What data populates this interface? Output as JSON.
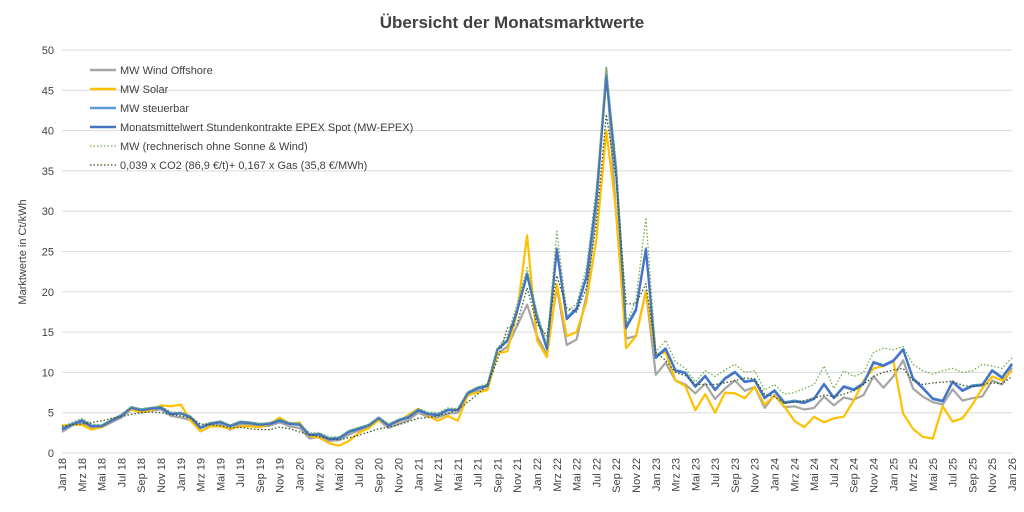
{
  "chart_data": {
    "type": "line",
    "title": "Übersicht der Monatsmarktwerte",
    "y_label": "Marktwerte in Ct/kWh",
    "categories": [
      "Jan 18",
      null,
      "Mrz 18",
      null,
      "Mai 18",
      null,
      "Jul 18",
      null,
      "Sep 18",
      null,
      "Nov 18",
      null,
      "Jan 19",
      null,
      "Mrz 19",
      null,
      "Mai 19",
      null,
      "Jul 19",
      null,
      "Sep 19",
      null,
      "Nov 19",
      null,
      "Jan 20",
      null,
      "Mrz 20",
      null,
      "Mai 20",
      null,
      "Jul 20",
      null,
      "Sep 20",
      null,
      "Nov 20",
      null,
      "Jan 21",
      null,
      "Mrz 21",
      null,
      "Mai 21",
      null,
      "Jul 21",
      null,
      "Sep 21",
      null,
      "Nov 21",
      null,
      "Jan 22",
      null,
      "Mrz 22",
      null,
      "Mai 22",
      null,
      "Jul 22",
      null,
      "Sep 22",
      null,
      "Nov 22",
      null,
      "Jan 23",
      null,
      "Mrz 23",
      null,
      "Mai 23",
      null,
      "Jul 23",
      null,
      "Sep 23",
      null,
      "Nov 23",
      null,
      "Jan 24",
      null,
      "Mrz 24",
      null,
      "Mai 24",
      null,
      "Jul 24",
      null,
      "Sep 24",
      null,
      "Nov 24",
      null,
      "Jan 25",
      null,
      "Mrz 25",
      null,
      "Mai 25",
      null,
      "Jul 25",
      null,
      "Sep 25",
      null,
      "Nov 25",
      null,
      "Jan 26"
    ],
    "ylim": [
      0,
      50
    ],
    "yticks": [
      0,
      5,
      10,
      15,
      20,
      25,
      30,
      35,
      40,
      45,
      50
    ],
    "grid": true,
    "legend": "top-left",
    "series": [
      {
        "name": "MW Wind Offshore",
        "color": "#a5a5a5",
        "dash": "solid",
        "values": [
          2.6,
          3.4,
          3.8,
          3.1,
          3.2,
          3.8,
          4.4,
          5.4,
          5.0,
          5.3,
          5.4,
          4.6,
          4.4,
          4.1,
          2.7,
          3.3,
          3.5,
          2.9,
          3.6,
          3.5,
          3.3,
          3.4,
          3.8,
          3.3,
          3.1,
          1.8,
          2.0,
          1.5,
          1.6,
          2.3,
          2.8,
          3.2,
          4.1,
          3.1,
          3.6,
          4.1,
          5.0,
          4.5,
          4.4,
          4.9,
          5.0,
          7.1,
          7.7,
          7.9,
          12.3,
          13.2,
          15.8,
          18.4,
          14.5,
          12.2,
          20.6,
          13.4,
          14.1,
          19.5,
          30.5,
          47.7,
          29.5,
          14.2,
          14.5,
          20.1,
          9.7,
          11.2,
          9.0,
          8.5,
          7.4,
          8.6,
          6.7,
          8.0,
          9.0,
          7.7,
          8.2,
          5.6,
          7.2,
          5.7,
          5.8,
          5.4,
          5.6,
          7.0,
          5.9,
          6.9,
          6.6,
          7.2,
          9.5,
          8.1,
          9.5,
          11.5,
          8.0,
          7.0,
          6.3,
          6.0,
          7.9,
          6.5,
          6.8,
          7.0,
          9.0,
          8.5,
          10.6
        ]
      },
      {
        "name": "MW Solar",
        "color": "#ffc000",
        "dash": "solid",
        "values": [
          3.4,
          3.5,
          3.5,
          2.9,
          3.2,
          4.0,
          4.7,
          5.4,
          5.1,
          5.3,
          5.9,
          5.8,
          6.0,
          4.0,
          2.7,
          3.3,
          3.3,
          3.0,
          3.3,
          3.3,
          3.2,
          3.6,
          4.4,
          3.6,
          3.8,
          2.1,
          1.9,
          1.2,
          0.9,
          1.5,
          2.5,
          3.1,
          4.1,
          3.5,
          3.9,
          4.7,
          5.5,
          4.6,
          4.0,
          4.6,
          4.0,
          7.2,
          7.5,
          7.8,
          12.4,
          12.6,
          17.5,
          27.0,
          14.0,
          11.9,
          20.9,
          14.5,
          15.0,
          18.8,
          26.5,
          40.0,
          30.0,
          13.0,
          14.5,
          20.0,
          12.2,
          12.5,
          9.0,
          8.3,
          5.3,
          7.3,
          5.0,
          7.5,
          7.4,
          6.8,
          8.2,
          6.0,
          7.1,
          5.8,
          4.0,
          3.2,
          4.5,
          3.8,
          4.3,
          4.5,
          6.5,
          9.0,
          10.5,
          10.8,
          11.5,
          4.9,
          3.0,
          2.0,
          1.8,
          5.8,
          3.9,
          4.3,
          6.0,
          8.0,
          9.5,
          9.0,
          10.2
        ]
      },
      {
        "name": "MW steuerbar",
        "color": "#5b9bd5",
        "dash": "solid",
        "values": [
          3.0,
          3.6,
          4.1,
          3.4,
          3.4,
          4.1,
          4.7,
          5.7,
          5.4,
          5.6,
          5.7,
          4.9,
          5.0,
          4.5,
          3.2,
          3.7,
          3.9,
          3.4,
          3.9,
          3.8,
          3.6,
          3.7,
          4.1,
          3.7,
          3.6,
          2.3,
          2.4,
          1.8,
          1.9,
          2.7,
          3.1,
          3.5,
          4.4,
          3.5,
          4.1,
          4.5,
          5.4,
          4.9,
          4.8,
          5.4,
          5.4,
          7.5,
          8.1,
          8.4,
          12.9,
          14.0,
          17.8,
          22.3,
          17.0,
          13.0,
          25.4,
          16.8,
          18.0,
          22.0,
          31.8,
          47.0,
          35.0,
          15.7,
          17.9,
          25.4,
          12.0,
          13.0,
          10.3,
          10.0,
          8.3,
          9.6,
          7.9,
          9.3,
          10.1,
          8.9,
          9.1,
          6.9,
          7.8,
          6.3,
          6.5,
          6.3,
          6.8,
          8.6,
          6.9,
          8.3,
          7.9,
          8.7,
          11.3,
          10.9,
          11.5,
          12.9,
          9.3,
          8.1,
          6.8,
          6.5,
          8.9,
          7.8,
          8.4,
          8.5,
          10.3,
          9.4,
          11.1
        ]
      },
      {
        "name": "Monatsmittelwert Stundenkontrakte EPEX Spot (MW-EPEX)",
        "color": "#4472c4",
        "dash": "solid",
        "values": [
          2.9,
          3.5,
          4.0,
          3.3,
          3.3,
          4.0,
          4.6,
          5.6,
          5.3,
          5.5,
          5.6,
          4.8,
          4.9,
          4.4,
          3.1,
          3.6,
          3.8,
          3.3,
          3.8,
          3.7,
          3.5,
          3.6,
          4.0,
          3.6,
          3.5,
          2.2,
          2.3,
          1.7,
          1.8,
          2.6,
          3.0,
          3.4,
          4.3,
          3.4,
          4.0,
          4.4,
          5.3,
          4.8,
          4.7,
          5.3,
          5.3,
          7.4,
          8.0,
          8.3,
          12.8,
          13.9,
          17.6,
          22.1,
          16.8,
          12.9,
          25.2,
          16.6,
          17.8,
          21.8,
          31.5,
          46.6,
          34.8,
          15.5,
          17.7,
          25.2,
          11.8,
          12.9,
          10.2,
          9.9,
          8.2,
          9.5,
          7.8,
          9.2,
          10.0,
          8.8,
          9.0,
          6.8,
          7.7,
          6.2,
          6.4,
          6.2,
          6.7,
          8.5,
          6.8,
          8.2,
          7.8,
          8.6,
          11.2,
          10.8,
          11.4,
          12.8,
          9.2,
          8.0,
          6.7,
          6.4,
          8.8,
          7.7,
          8.3,
          8.4,
          10.2,
          9.3,
          11.0
        ]
      },
      {
        "name": "MW (rechnerisch ohne Sonne & Wind)",
        "color": "#70ad47",
        "dash": "dotted",
        "values": [
          3.2,
          3.8,
          4.3,
          3.6,
          3.5,
          4.2,
          4.8,
          5.7,
          5.5,
          5.7,
          5.8,
          5.1,
          5.0,
          4.6,
          3.5,
          3.8,
          4.0,
          3.5,
          3.9,
          3.8,
          3.6,
          3.8,
          4.2,
          3.8,
          3.7,
          2.5,
          2.5,
          2.0,
          2.0,
          2.8,
          3.2,
          3.5,
          4.4,
          3.6,
          4.2,
          4.6,
          5.5,
          5.1,
          5.0,
          5.6,
          5.5,
          7.6,
          8.2,
          8.6,
          13.0,
          14.5,
          18.5,
          23.0,
          17.5,
          13.5,
          27.5,
          17.5,
          18.5,
          23.0,
          33.0,
          48.0,
          36.0,
          16.0,
          19.0,
          29.2,
          12.5,
          14.0,
          11.3,
          10.5,
          8.8,
          10.2,
          9.5,
          10.3,
          11.0,
          10.0,
          10.2,
          7.8,
          8.5,
          7.3,
          7.5,
          8.0,
          8.5,
          10.8,
          8.0,
          10.2,
          9.5,
          10.0,
          12.5,
          13.0,
          12.8,
          13.2,
          11.0,
          10.2,
          9.8,
          10.2,
          10.5,
          10.0,
          10.2,
          11.0,
          10.8,
          10.5,
          11.8
        ]
      },
      {
        "name": "0,039 x CO2 (86,9 €/t)+ 0,167 x Gas (35,8 €/MWh)",
        "color": "#375623",
        "dash": "dotted",
        "values": [
          3.3,
          3.5,
          3.6,
          3.8,
          4.0,
          4.3,
          4.5,
          4.8,
          5.0,
          5.1,
          5.0,
          4.8,
          4.6,
          4.3,
          3.6,
          3.5,
          3.4,
          3.1,
          3.2,
          3.0,
          2.9,
          2.9,
          3.2,
          3.0,
          2.6,
          2.3,
          2.0,
          1.8,
          1.6,
          1.9,
          2.2,
          2.6,
          3.0,
          3.2,
          3.5,
          3.9,
          4.3,
          4.4,
          4.6,
          4.9,
          5.4,
          6.3,
          7.3,
          8.5,
          11.5,
          15.5,
          16.0,
          20.5,
          16.0,
          14.5,
          22.0,
          18.0,
          17.5,
          20.5,
          28.5,
          42.0,
          34.0,
          18.5,
          18.5,
          21.0,
          12.5,
          11.5,
          10.0,
          9.6,
          8.5,
          8.5,
          8.5,
          8.7,
          9.0,
          9.3,
          9.2,
          7.3,
          7.0,
          6.2,
          6.3,
          6.5,
          6.8,
          7.2,
          7.0,
          7.3,
          7.7,
          8.5,
          9.5,
          10.0,
          10.3,
          10.5,
          9.0,
          8.5,
          8.7,
          8.8,
          8.9,
          8.4,
          8.2,
          8.5,
          8.7,
          8.6,
          9.5
        ]
      }
    ]
  }
}
